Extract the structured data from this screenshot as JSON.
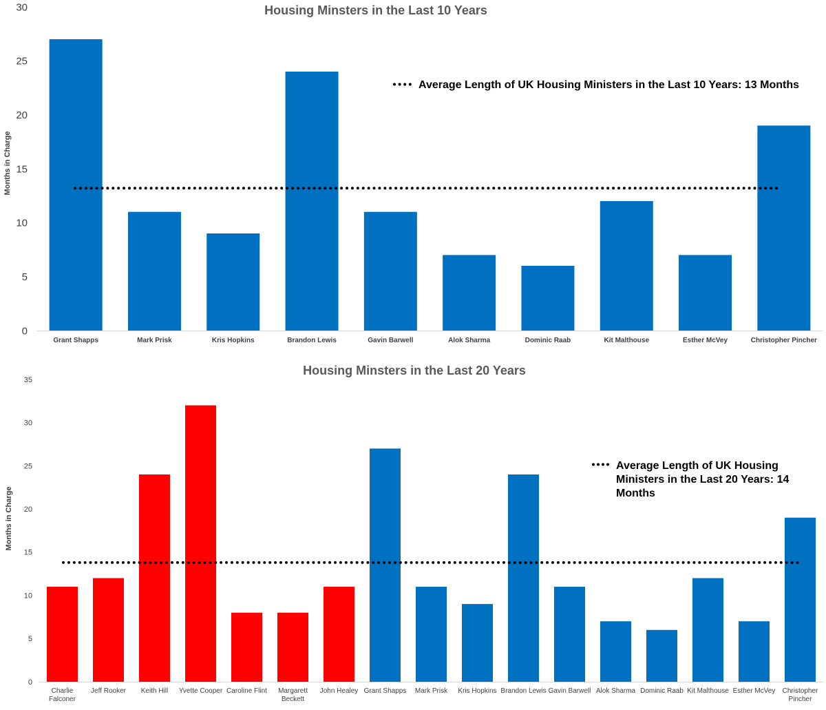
{
  "chart_data": [
    {
      "type": "bar",
      "title": "Housing Minsters in the Last 10 Years",
      "ylabel": "Months in Charge",
      "xlabel": "",
      "ylim": [
        0,
        30
      ],
      "yticks": [
        0,
        5,
        10,
        15,
        20,
        25,
        30
      ],
      "grid": false,
      "categories": [
        "Grant Shapps",
        "Mark Prisk",
        "Kris Hopkins",
        "Brandon Lewis",
        "Gavin Barwell",
        "Alok Sharma",
        "Dominic Raab",
        "Kit Malthouse",
        "Esther McVey",
        "Christopher Pincher"
      ],
      "values": [
        27,
        11,
        9,
        24,
        11,
        7,
        6,
        12,
        7,
        19
      ],
      "bar_colors": [
        "#0070C0",
        "#0070C0",
        "#0070C0",
        "#0070C0",
        "#0070C0",
        "#0070C0",
        "#0070C0",
        "#0070C0",
        "#0070C0",
        "#0070C0"
      ],
      "average": {
        "value": 13.2,
        "label": "Average Length of UK Housing Ministers in the Last 10 Years: 13 Months",
        "style": "dotted",
        "color": "#000000",
        "legend_position": "top-right"
      }
    },
    {
      "type": "bar",
      "title": "Housing Minsters in the Last 20 Years",
      "ylabel": "Months in Charge",
      "xlabel": "",
      "ylim": [
        0,
        35
      ],
      "yticks": [
        0,
        5,
        10,
        15,
        20,
        25,
        30,
        35
      ],
      "grid": false,
      "categories": [
        "Charlie Falconer",
        "Jeff Rooker",
        "Keith Hill",
        "Yvette Cooper",
        "Caroline Flint",
        "Margarett Beckett",
        "John Healey",
        "Grant Shapps",
        "Mark Prisk",
        "Kris Hopkins",
        "Brandon Lewis",
        "Gavin Barwell",
        "Alok Sharma",
        "Dominic Raab",
        "Kit Malthouse",
        "Esther McVey",
        "Christopher Pincher"
      ],
      "values": [
        11,
        12,
        24,
        32,
        8,
        8,
        11,
        27,
        11,
        9,
        24,
        11,
        7,
        6,
        12,
        7,
        19
      ],
      "bar_colors": [
        "#FF0000",
        "#FF0000",
        "#FF0000",
        "#FF0000",
        "#FF0000",
        "#FF0000",
        "#FF0000",
        "#0070C0",
        "#0070C0",
        "#0070C0",
        "#0070C0",
        "#0070C0",
        "#0070C0",
        "#0070C0",
        "#0070C0",
        "#0070C0",
        "#0070C0"
      ],
      "average": {
        "value": 13.8,
        "label": "Average Length of UK Housing Ministers in the Last 20 Years:    14 Months",
        "style": "dotted",
        "color": "#000000",
        "legend_position": "top-right"
      }
    }
  ]
}
